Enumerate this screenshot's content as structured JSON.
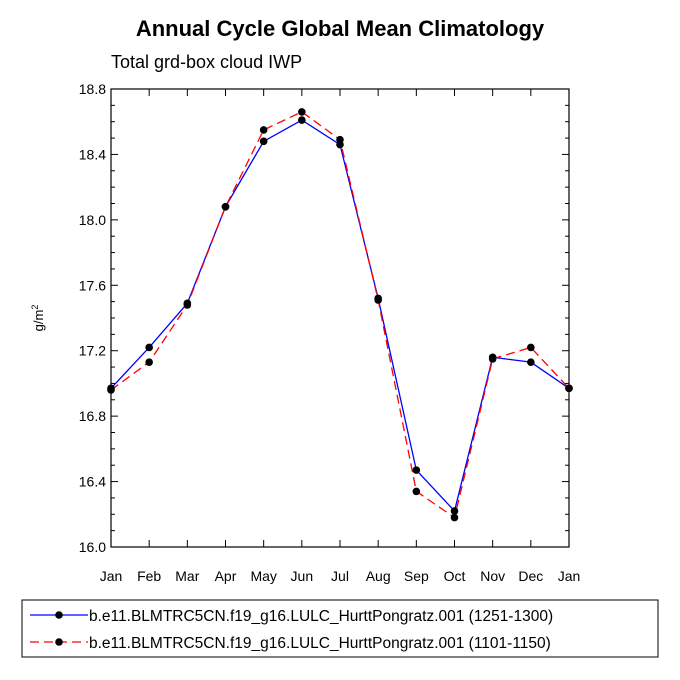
{
  "chart_data": {
    "type": "line",
    "title": "Annual Cycle Global Mean Climatology",
    "subtitle": "Total grd-box cloud IWP",
    "ylabel": "g/m",
    "ylabel_sup": "2",
    "xlabel": "",
    "categories": [
      "Jan",
      "Feb",
      "Mar",
      "Apr",
      "May",
      "Jun",
      "Jul",
      "Aug",
      "Sep",
      "Oct",
      "Nov",
      "Dec",
      "Jan"
    ],
    "ylim": [
      16.0,
      18.8
    ],
    "yticks": [
      "16.0",
      "16.4",
      "16.8",
      "17.2",
      "17.6",
      "18.0",
      "18.4",
      "18.8"
    ],
    "series": [
      {
        "name": "b.e11.BLMTRC5CN.f19_g16.LULC_HurttPongratz.001 (1251-1300)",
        "color": "#0000ff",
        "dash": "solid",
        "values": [
          16.97,
          17.22,
          17.49,
          18.08,
          18.48,
          18.61,
          18.46,
          17.52,
          16.47,
          16.22,
          17.16,
          17.13,
          16.97
        ]
      },
      {
        "name": "b.e11.BLMTRC5CN.f19_g16.LULC_HurttPongratz.001 (1101-1150)",
        "color": "#ff0000",
        "dash": "dashed",
        "values": [
          16.96,
          17.13,
          17.48,
          18.08,
          18.55,
          18.66,
          18.49,
          17.51,
          16.34,
          16.18,
          17.15,
          17.22,
          16.97
        ]
      }
    ],
    "grid": false,
    "legend_position": "bottom"
  }
}
